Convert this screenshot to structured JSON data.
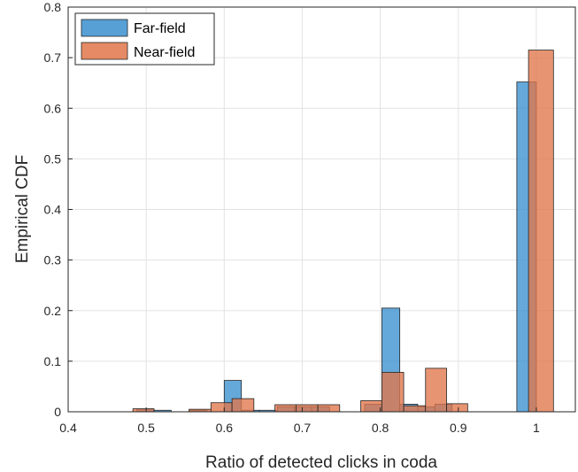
{
  "chart_data": {
    "type": "bar",
    "title": "",
    "xlabel": "Ratio of detected clicks in coda",
    "ylabel": "Empirical CDF",
    "xlim": [
      0.4,
      1.05
    ],
    "ylim": [
      0,
      0.8
    ],
    "xticks": [
      "0.4",
      "0.5",
      "0.6",
      "0.7",
      "0.8",
      "0.9",
      "1"
    ],
    "yticks": [
      "0",
      "0.1",
      "0.2",
      "0.3",
      "0.4",
      "0.5",
      "0.6",
      "0.7",
      "0.8"
    ],
    "grid": true,
    "legend_position": "top-left",
    "series": [
      {
        "name": "Far-field",
        "color": "#3a8fcf",
        "bins": [
          {
            "x0": 0.488,
            "x1": 0.51,
            "value": 0.005
          },
          {
            "x0": 0.51,
            "x1": 0.532,
            "value": 0.003
          },
          {
            "x0": 0.555,
            "x1": 0.578,
            "value": 0.003
          },
          {
            "x0": 0.6,
            "x1": 0.622,
            "value": 0.062
          },
          {
            "x0": 0.622,
            "x1": 0.645,
            "value": 0.003
          },
          {
            "x0": 0.645,
            "x1": 0.668,
            "value": 0.003
          },
          {
            "x0": 0.668,
            "x1": 0.69,
            "value": 0.01
          },
          {
            "x0": 0.69,
            "x1": 0.712,
            "value": 0.01
          },
          {
            "x0": 0.712,
            "x1": 0.735,
            "value": 0.01
          },
          {
            "x0": 0.78,
            "x1": 0.802,
            "value": 0.015
          },
          {
            "x0": 0.802,
            "x1": 0.825,
            "value": 0.205
          },
          {
            "x0": 0.825,
            "x1": 0.848,
            "value": 0.015
          },
          {
            "x0": 0.848,
            "x1": 0.87,
            "value": 0.01
          },
          {
            "x0": 0.87,
            "x1": 0.892,
            "value": 0.015
          },
          {
            "x0": 0.975,
            "x1": 1.0,
            "value": 0.652
          }
        ]
      },
      {
        "name": "Near-field",
        "color": "#e0764a",
        "bins": [
          {
            "x0": 0.483,
            "x1": 0.51,
            "value": 0.006
          },
          {
            "x0": 0.555,
            "x1": 0.583,
            "value": 0.005
          },
          {
            "x0": 0.583,
            "x1": 0.61,
            "value": 0.018
          },
          {
            "x0": 0.61,
            "x1": 0.638,
            "value": 0.026
          },
          {
            "x0": 0.665,
            "x1": 0.692,
            "value": 0.014
          },
          {
            "x0": 0.692,
            "x1": 0.72,
            "value": 0.014
          },
          {
            "x0": 0.72,
            "x1": 0.748,
            "value": 0.014
          },
          {
            "x0": 0.775,
            "x1": 0.802,
            "value": 0.022
          },
          {
            "x0": 0.802,
            "x1": 0.83,
            "value": 0.078
          },
          {
            "x0": 0.83,
            "x1": 0.858,
            "value": 0.012
          },
          {
            "x0": 0.858,
            "x1": 0.885,
            "value": 0.086
          },
          {
            "x0": 0.885,
            "x1": 0.912,
            "value": 0.016
          },
          {
            "x0": 0.99,
            "x1": 1.022,
            "value": 0.715
          }
        ]
      }
    ]
  }
}
